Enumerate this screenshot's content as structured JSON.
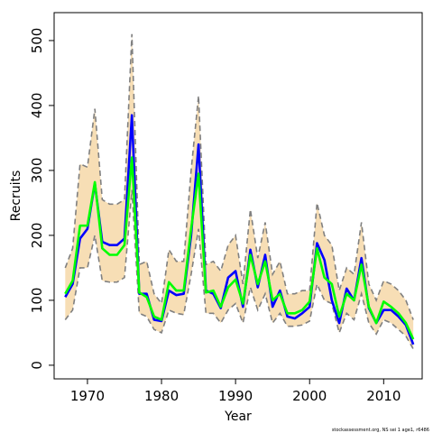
{
  "chart_data": {
    "type": "line",
    "xlabel": "Year",
    "ylabel": "Recruits",
    "footnote": "stockassessment.org, NS sei 1 age1, r6486",
    "x": [
      1967,
      1968,
      1969,
      1970,
      1971,
      1972,
      1973,
      1974,
      1975,
      1976,
      1977,
      1978,
      1979,
      1980,
      1981,
      1982,
      1983,
      1984,
      1985,
      1986,
      1987,
      1988,
      1989,
      1990,
      1991,
      1992,
      1993,
      1994,
      1995,
      1996,
      1997,
      1998,
      1999,
      2000,
      2001,
      2002,
      2003,
      2004,
      2005,
      2006,
      2007,
      2008,
      2009,
      2010,
      2011,
      2012,
      2013,
      2014
    ],
    "series": [
      {
        "color": "#0000ff",
        "values": [
          105,
          125,
          195,
          210,
          280,
          190,
          185,
          185,
          195,
          385,
          110,
          110,
          70,
          68,
          115,
          108,
          110,
          200,
          340,
          115,
          110,
          88,
          135,
          145,
          90,
          178,
          120,
          170,
          90,
          115,
          75,
          72,
          80,
          90,
          188,
          162,
          100,
          65,
          118,
          100,
          165,
          88,
          65,
          85,
          85,
          75,
          62,
          32
        ]
      },
      {
        "color": "#00ff00",
        "values": [
          110,
          130,
          215,
          215,
          282,
          180,
          170,
          170,
          185,
          320,
          112,
          105,
          75,
          70,
          128,
          115,
          115,
          210,
          295,
          112,
          115,
          90,
          120,
          132,
          95,
          170,
          125,
          160,
          100,
          110,
          80,
          80,
          85,
          98,
          180,
          135,
          125,
          75,
          110,
          100,
          155,
          90,
          65,
          98,
          90,
          80,
          65,
          40
        ]
      }
    ],
    "band": {
      "color": "#f7deb5",
      "line_color": "#808080",
      "upper": [
        150,
        180,
        310,
        305,
        395,
        255,
        248,
        248,
        255,
        510,
        155,
        160,
        110,
        95,
        178,
        160,
        160,
        300,
        415,
        155,
        160,
        145,
        185,
        200,
        125,
        240,
        165,
        220,
        140,
        160,
        110,
        110,
        115,
        115,
        250,
        200,
        185,
        115,
        150,
        140,
        220,
        125,
        100,
        130,
        125,
        115,
        100,
        70
      ],
      "lower": [
        70,
        85,
        150,
        150,
        200,
        130,
        128,
        128,
        135,
        270,
        80,
        75,
        55,
        50,
        85,
        80,
        78,
        140,
        210,
        80,
        80,
        65,
        85,
        95,
        65,
        120,
        85,
        110,
        65,
        80,
        60,
        60,
        62,
        68,
        125,
        100,
        95,
        50,
        80,
        70,
        110,
        65,
        48,
        70,
        65,
        55,
        45,
        25
      ]
    },
    "xlim": [
      1965.5,
      2015.2
    ],
    "xticks": [
      1970,
      1980,
      1990,
      2000,
      2010
    ],
    "ylim": [
      -21,
      543
    ],
    "yticks": [
      0,
      100,
      200,
      300,
      400,
      500
    ]
  }
}
